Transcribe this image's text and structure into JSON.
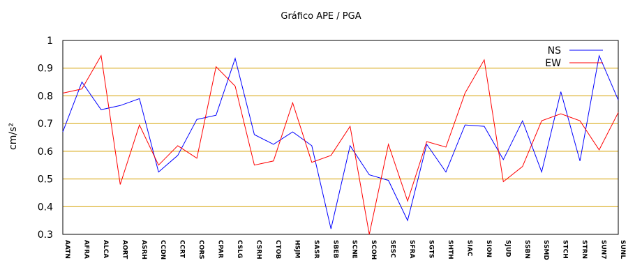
{
  "chart_data": {
    "type": "line",
    "title": "Gráfico  APE / PGA",
    "xlabel": "",
    "ylabel": "cm/s²",
    "ylim": [
      0.3,
      1.0
    ],
    "yticks": [
      "0.3",
      "0.4",
      "0.5",
      "0.6",
      "0.7",
      "0.8",
      "0.9",
      "1"
    ],
    "grid": "horizontal",
    "grid_color": "#d4a000",
    "legend_position": "top-right",
    "categories": [
      "AATN",
      "AFRA",
      "ALCA",
      "AORT",
      "ASRH",
      "CCDN",
      "CCRT",
      "CORS",
      "CPAR",
      "CSLG",
      "CSRH",
      "CTOB",
      "HSJM",
      "SASR",
      "SBEB",
      "SCNE",
      "SCOH",
      "SESC",
      "SFRA",
      "SGTS",
      "SHTH",
      "SIAC",
      "SION",
      "SJUD",
      "SSBN",
      "SSMD",
      "STCH",
      "STRN",
      "SUN7",
      "SUNL"
    ],
    "series": [
      {
        "name": "NS",
        "color": "#0000ff",
        "values": [
          0.67,
          0.85,
          0.75,
          0.765,
          0.79,
          0.525,
          0.585,
          0.715,
          0.73,
          0.935,
          0.66,
          0.625,
          0.67,
          0.62,
          0.32,
          0.62,
          0.515,
          0.495,
          0.35,
          0.625,
          0.525,
          0.695,
          0.69,
          0.57,
          0.71,
          0.525,
          0.815,
          0.565,
          0.945,
          0.785
        ]
      },
      {
        "name": "EW",
        "color": "#ff0000",
        "values": [
          0.81,
          0.825,
          0.945,
          0.48,
          0.695,
          0.55,
          0.62,
          0.575,
          0.905,
          0.835,
          0.55,
          0.565,
          0.775,
          0.56,
          0.585,
          0.69,
          0.3,
          0.625,
          0.42,
          0.635,
          0.615,
          0.81,
          0.93,
          0.49,
          0.545,
          0.71,
          0.735,
          0.71,
          0.605,
          0.74
        ]
      }
    ]
  }
}
